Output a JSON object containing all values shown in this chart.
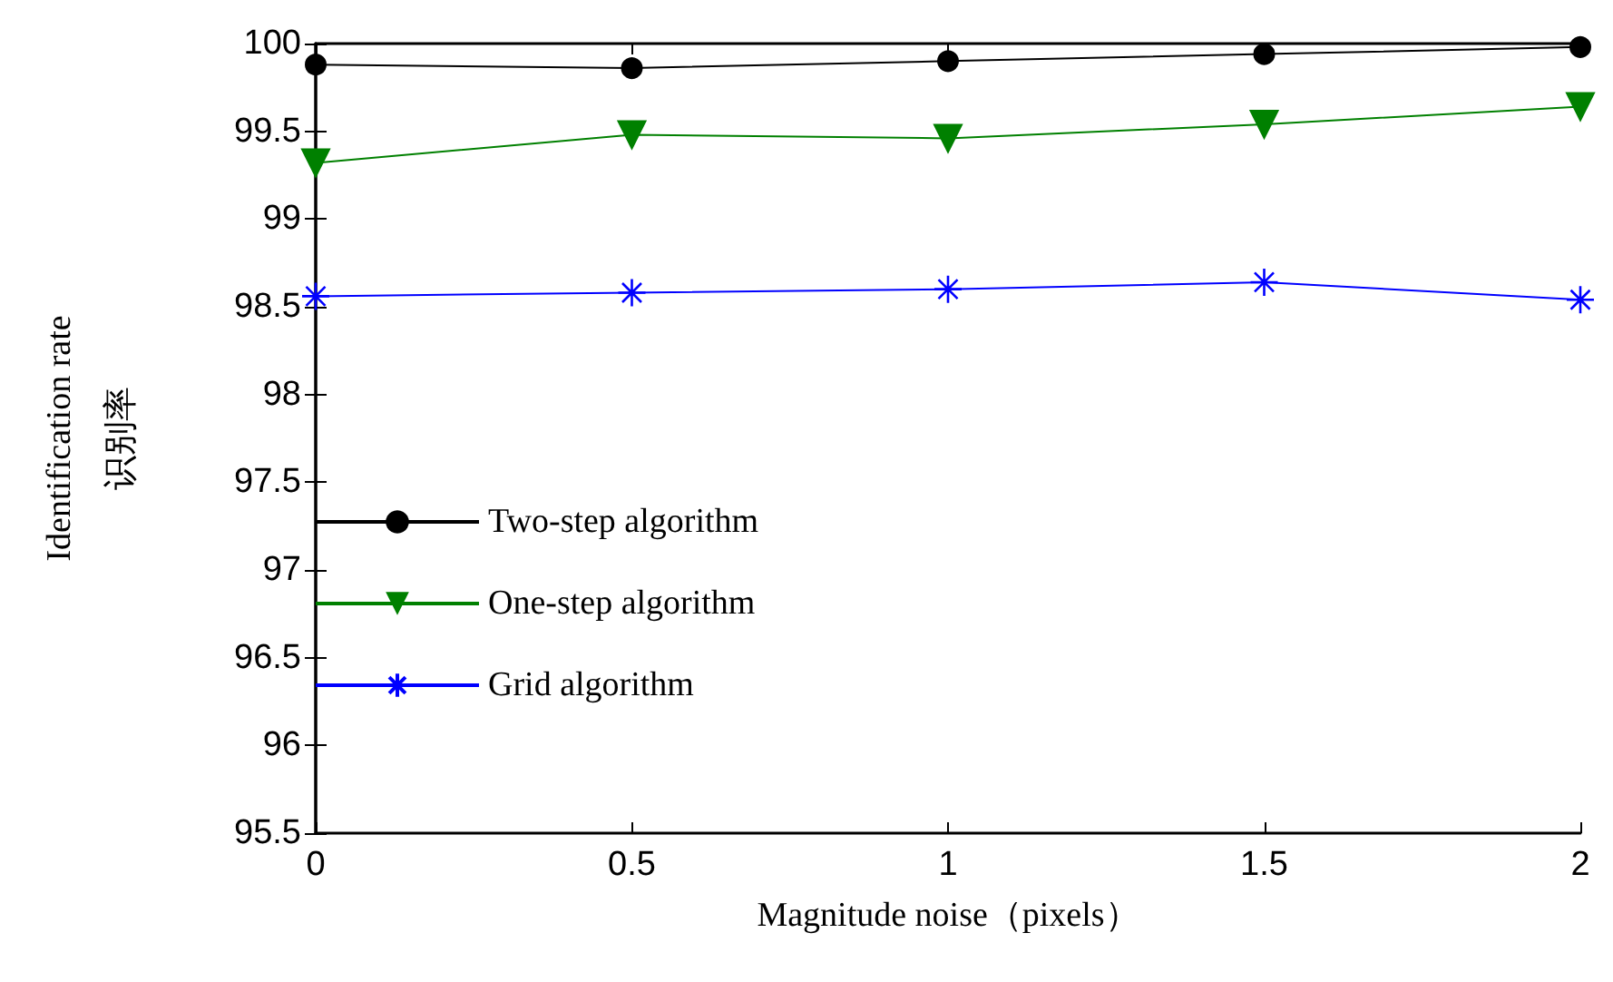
{
  "chart_data": {
    "type": "line",
    "xlabel": "Magnitude noise（pixels）",
    "ylabel": "Identification rate\n识别率",
    "x": [
      0,
      0.5,
      1,
      1.5,
      2
    ],
    "series": [
      {
        "name": "Two-step algorithm",
        "color": "#000000",
        "marker": "circle",
        "values": [
          99.88,
          99.86,
          99.9,
          99.94,
          99.98
        ]
      },
      {
        "name": "One-step algorithm",
        "color": "#008000",
        "marker": "triangle",
        "values": [
          99.32,
          99.48,
          99.46,
          99.54,
          99.64
        ]
      },
      {
        "name": "Grid algorithm",
        "color": "#0000ff",
        "marker": "cross",
        "values": [
          98.56,
          98.58,
          98.6,
          98.64,
          98.54
        ]
      }
    ],
    "xlim": [
      0,
      2
    ],
    "xticks": [
      0,
      0.5,
      1,
      1.5,
      2
    ],
    "ylim": [
      95.5,
      100
    ],
    "yticks": [
      95.5,
      96,
      96.5,
      97,
      97.5,
      98,
      98.5,
      99,
      99.5,
      100
    ],
    "grid": false,
    "legend": "left"
  }
}
